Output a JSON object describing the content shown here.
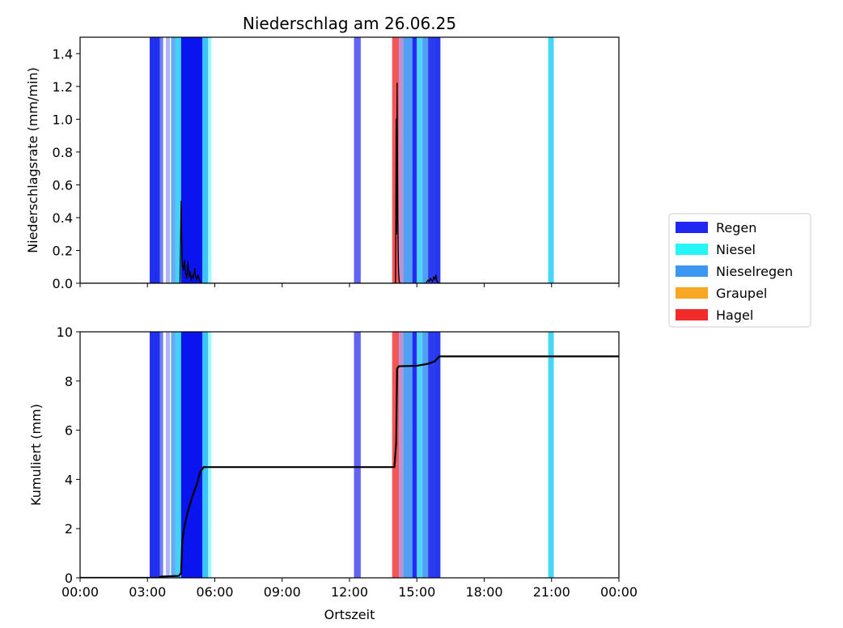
{
  "chart_data": {
    "type": "line",
    "title": "Niederschlag am 26.06.25",
    "xlabel": "Ortszeit",
    "x_domain_hours": [
      0,
      24
    ],
    "x_ticks": [
      {
        "h": 0,
        "label": "00:00"
      },
      {
        "h": 3,
        "label": "03:00"
      },
      {
        "h": 6,
        "label": "06:00"
      },
      {
        "h": 9,
        "label": "09:00"
      },
      {
        "h": 12,
        "label": "12:00"
      },
      {
        "h": 15,
        "label": "15:00"
      },
      {
        "h": 18,
        "label": "18:00"
      },
      {
        "h": 21,
        "label": "21:00"
      },
      {
        "h": 24,
        "label": "00:00"
      }
    ],
    "legend": {
      "placement": "right",
      "entries": [
        {
          "key": "regen",
          "label": "Regen",
          "color": "#1f27f0"
        },
        {
          "key": "niesel",
          "label": "Niesel",
          "color": "#25f5f5"
        },
        {
          "key": "nieselregen",
          "label": "Nieselregen",
          "color": "#3d97f2"
        },
        {
          "key": "graupel",
          "label": "Graupel",
          "color": "#f7a823"
        },
        {
          "key": "hagel",
          "label": "Hagel",
          "color": "#f12a2a"
        }
      ]
    },
    "precip_bands": [
      {
        "start": 3.1,
        "end": 3.55,
        "color": "#1525ee",
        "opacity": 0.95
      },
      {
        "start": 3.55,
        "end": 3.7,
        "color": "#3548ee",
        "opacity": 0.7
      },
      {
        "start": 3.82,
        "end": 4.0,
        "color": "#6d76f0",
        "opacity": 0.55
      },
      {
        "start": 4.05,
        "end": 4.25,
        "color": "#3d97f2",
        "opacity": 0.8
      },
      {
        "start": 4.25,
        "end": 4.5,
        "color": "#25c8f5",
        "opacity": 0.85
      },
      {
        "start": 4.5,
        "end": 5.45,
        "color": "#0a14ef",
        "opacity": 1.0
      },
      {
        "start": 5.45,
        "end": 5.7,
        "color": "#1ab8f5",
        "opacity": 0.85
      },
      {
        "start": 5.7,
        "end": 5.85,
        "color": "#25f5f5",
        "opacity": 0.45
      },
      {
        "start": 12.2,
        "end": 12.5,
        "color": "#3a3cf0",
        "opacity": 0.8
      },
      {
        "start": 13.9,
        "end": 14.2,
        "color": "#f12a2a",
        "opacity": 0.8
      },
      {
        "start": 14.2,
        "end": 14.4,
        "color": "#9b58b8",
        "opacity": 0.65
      },
      {
        "start": 14.4,
        "end": 14.8,
        "color": "#3d97f2",
        "opacity": 0.9
      },
      {
        "start": 14.8,
        "end": 15.0,
        "color": "#0a14ef",
        "opacity": 0.9
      },
      {
        "start": 15.0,
        "end": 15.25,
        "color": "#25c8f5",
        "opacity": 0.8
      },
      {
        "start": 15.25,
        "end": 15.5,
        "color": "#3d97f2",
        "opacity": 0.9
      },
      {
        "start": 15.5,
        "end": 15.75,
        "color": "#1525ee",
        "opacity": 0.9
      },
      {
        "start": 15.75,
        "end": 16.05,
        "color": "#1a2ef0",
        "opacity": 0.95
      },
      {
        "start": 20.85,
        "end": 21.1,
        "color": "#25d0f5",
        "opacity": 0.85
      }
    ],
    "panels": [
      {
        "id": "rate",
        "ylabel": "Niederschlagsrate (mm/min)",
        "ylim": [
          0,
          1.5
        ],
        "y_ticks": [
          {
            "v": 0.0,
            "label": "0.0"
          },
          {
            "v": 0.2,
            "label": "0.2"
          },
          {
            "v": 0.4,
            "label": "0.4"
          },
          {
            "v": 0.6,
            "label": "0.6"
          },
          {
            "v": 0.8,
            "label": "0.8"
          },
          {
            "v": 1.0,
            "label": "1.0"
          },
          {
            "v": 1.2,
            "label": "1.2"
          },
          {
            "v": 1.4,
            "label": "1.4"
          }
        ],
        "series": {
          "color": "#000000",
          "x": [
            0,
            4.45,
            4.5,
            4.52,
            4.55,
            4.6,
            4.65,
            4.7,
            4.75,
            4.8,
            4.85,
            4.9,
            4.95,
            5.0,
            5.05,
            5.1,
            5.15,
            5.2,
            5.25,
            5.3,
            5.35,
            5.4,
            14.05,
            14.08,
            14.1,
            14.12,
            14.15,
            14.18,
            14.2,
            14.22,
            14.25,
            15.4,
            15.5,
            15.55,
            15.6,
            15.7,
            15.75,
            15.8,
            15.85,
            15.9,
            16.0,
            24
          ],
          "y": [
            0,
            0,
            0.5,
            0.3,
            0.12,
            0.08,
            0.14,
            0.06,
            0.03,
            0.13,
            0.04,
            0.07,
            0.02,
            0.05,
            0.03,
            0.09,
            0.04,
            0.02,
            0.05,
            0.03,
            0.01,
            0,
            0,
            1.0,
            0.3,
            1.22,
            0.4,
            0.1,
            0.04,
            0.01,
            0,
            0,
            0.02,
            0.01,
            0.03,
            0.01,
            0.04,
            0.02,
            0.05,
            0.01,
            0,
            0
          ]
        }
      },
      {
        "id": "cumulative",
        "ylabel": "Kumuliert (mm)",
        "ylim": [
          0,
          10
        ],
        "y_ticks": [
          {
            "v": 0,
            "label": "0"
          },
          {
            "v": 2,
            "label": "2"
          },
          {
            "v": 4,
            "label": "4"
          },
          {
            "v": 6,
            "label": "6"
          },
          {
            "v": 8,
            "label": "8"
          },
          {
            "v": 10,
            "label": "10"
          }
        ],
        "series": {
          "color": "#000000",
          "x": [
            0,
            3.5,
            3.6,
            4.4,
            4.5,
            4.55,
            4.65,
            4.8,
            5.0,
            5.2,
            5.35,
            5.5,
            6.0,
            14.0,
            14.08,
            14.12,
            14.2,
            15.0,
            15.5,
            15.8,
            16.0,
            24
          ],
          "y": [
            0,
            0,
            0.05,
            0.08,
            0.2,
            1.5,
            2.1,
            2.7,
            3.3,
            3.8,
            4.3,
            4.5,
            4.5,
            4.5,
            5.5,
            8.5,
            8.6,
            8.62,
            8.7,
            8.8,
            9.0,
            9.0
          ]
        }
      }
    ]
  }
}
